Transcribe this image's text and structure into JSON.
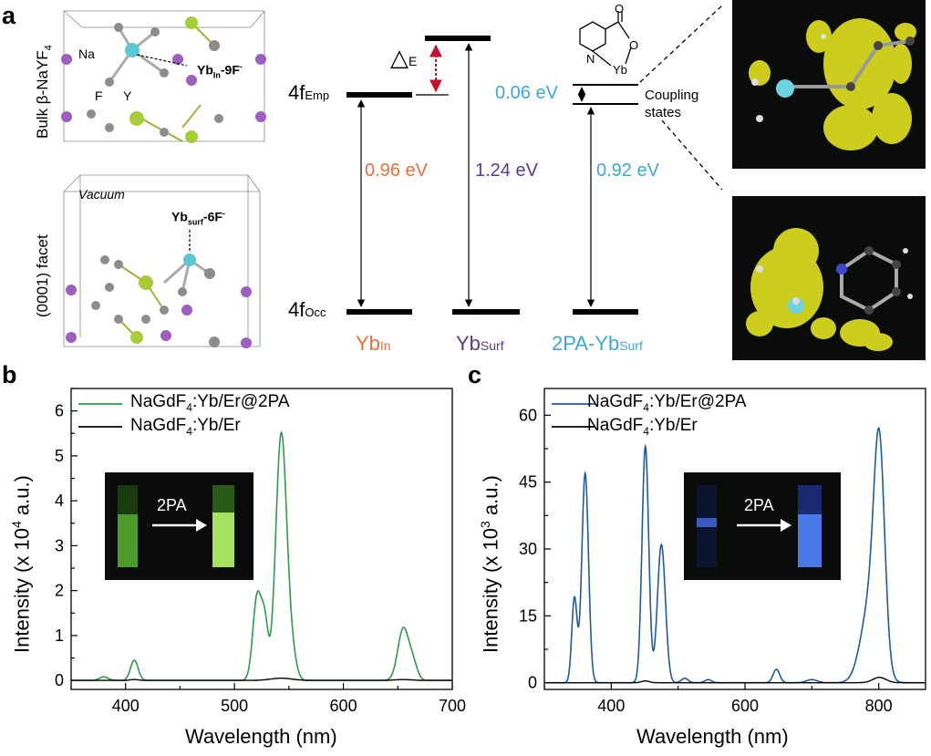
{
  "panels": {
    "a": {
      "letter": "a",
      "bulk_label": "Bulk β-NaYF",
      "bulk_sub": "4",
      "na_label": "Na",
      "f_label": "F",
      "y_label": "Y",
      "yb_in_bold": "Yb",
      "yb_in_sub": "In",
      "yb_in_suffix": "-9F",
      "yb_in_sup": "-",
      "facet_label": "(0001) facet",
      "vacuum_label": "Vacuum",
      "yb_surf_bold": "Yb",
      "yb_surf_sub": "surf",
      "yb_surf_suffix": "-6F",
      "yb_surf_sup": "-",
      "level_emp": "4f",
      "level_emp_sub": "Emp",
      "level_occ": "4f",
      "level_occ_sub": "Occ",
      "delta": "△",
      "delta_sub": "E",
      "gap1": "0.96 eV",
      "gap2": "1.24 eV",
      "gap3": "0.92 eV",
      "gap_small": "0.06 eV",
      "coupling_line1": "Coupling",
      "coupling_line2": "states",
      "col1": "Yb",
      "col1_sub": "In",
      "col2": "Yb",
      "col2_sub": "Surf",
      "col3": "2PA-Yb",
      "col3_sub": "Surf",
      "mol_n": "N",
      "mol_o1": "O",
      "mol_o2": "O",
      "mol_yb": "Yb",
      "colors": {
        "orange": "#e8703a",
        "purple": "#5a3a8c",
        "cyan": "#3aa8d8",
        "red_arrow": "#c8102e"
      }
    },
    "b": {
      "letter": "b",
      "legend": [
        {
          "name_pre": "NaGdF",
          "name_sub": "4",
          "name_post": ":Yb/Er@2PA",
          "color": "#2e9a4a"
        },
        {
          "name_pre": "NaGdF",
          "name_sub": "4",
          "name_post": ":Yb/Er",
          "color": "#000000"
        }
      ],
      "inset_label": "2PA",
      "ylabel_pre": "Intensity (x 10",
      "ylabel_sup": "4",
      "ylabel_post": " a.u.)",
      "xlabel": "Wavelength (nm)"
    },
    "c": {
      "letter": "c",
      "legend": [
        {
          "name_pre": "NaGdF",
          "name_sub": "4",
          "name_post": ":Yb/Er@2PA",
          "color": "#1f5aa0"
        },
        {
          "name_pre": "NaGdF",
          "name_sub": "4",
          "name_post": ":Yb/Er",
          "color": "#000000"
        }
      ],
      "inset_label": "2PA",
      "ylabel_pre": "Intensity (x 10",
      "ylabel_sup": "3",
      "ylabel_post": " a.u.)",
      "xlabel": "Wavelength (nm)"
    }
  },
  "chart_data": [
    {
      "type": "line",
      "panel": "b",
      "xlabel": "Wavelength (nm)",
      "ylabel": "Intensity (x 10^4 a.u.)",
      "xlim": [
        350,
        700
      ],
      "ylim": [
        -0.2,
        6.5
      ],
      "xticks": [
        400,
        500,
        600,
        700
      ],
      "yticks": [
        0,
        1,
        2,
        3,
        4,
        5,
        6
      ],
      "series": [
        {
          "name": "NaGdF4:Yb/Er@2PA",
          "color": "#2e9a4a",
          "peaks": [
            {
              "center": 380,
              "height": 0.08,
              "width": 4
            },
            {
              "center": 408,
              "height": 0.45,
              "width": 3.5
            },
            {
              "center": 521,
              "height": 1.9,
              "width": 4
            },
            {
              "center": 528,
              "height": 1.1,
              "width": 3
            },
            {
              "center": 543,
              "height": 5.5,
              "width": 5
            },
            {
              "center": 553,
              "height": 0.5,
              "width": 4
            },
            {
              "center": 655,
              "height": 1.15,
              "width": 5
            },
            {
              "center": 664,
              "height": 0.35,
              "width": 4
            }
          ]
        },
        {
          "name": "NaGdF4:Yb/Er",
          "color": "#000000",
          "peaks": [
            {
              "center": 408,
              "height": 0.02,
              "width": 4
            },
            {
              "center": 543,
              "height": 0.05,
              "width": 10
            },
            {
              "center": 655,
              "height": 0.02,
              "width": 8
            }
          ]
        }
      ]
    },
    {
      "type": "line",
      "panel": "c",
      "xlabel": "Wavelength (nm)",
      "ylabel": "Intensity (x 10^3 a.u.)",
      "xlim": [
        300,
        870
      ],
      "ylim": [
        -1.5,
        66
      ],
      "xticks": [
        400,
        600,
        800
      ],
      "yticks": [
        0,
        15,
        30,
        45,
        60
      ],
      "series": [
        {
          "name": "NaGdF4:Yb/Er@2PA",
          "color": "#1f5aa0",
          "peaks": [
            {
              "center": 345,
              "height": 19,
              "width": 4
            },
            {
              "center": 361,
              "height": 47,
              "width": 5
            },
            {
              "center": 451,
              "height": 53,
              "width": 5
            },
            {
              "center": 475,
              "height": 31,
              "width": 6
            },
            {
              "center": 510,
              "height": 1,
              "width": 5
            },
            {
              "center": 545,
              "height": 0.7,
              "width": 5
            },
            {
              "center": 647,
              "height": 3,
              "width": 5
            },
            {
              "center": 700,
              "height": 0.7,
              "width": 8
            },
            {
              "center": 788,
              "height": 18,
              "width": 14
            },
            {
              "center": 801,
              "height": 45,
              "width": 8
            }
          ]
        },
        {
          "name": "NaGdF4:Yb/Er",
          "color": "#000000",
          "peaks": [
            {
              "center": 451,
              "height": 0.4,
              "width": 6
            },
            {
              "center": 801,
              "height": 1.2,
              "width": 10
            }
          ]
        }
      ]
    }
  ]
}
